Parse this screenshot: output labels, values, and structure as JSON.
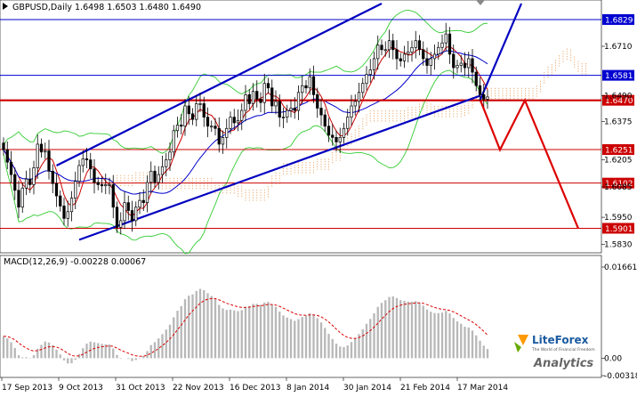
{
  "chart_data": {
    "type": "candlestick",
    "symbol_header": {
      "symbol": "GBPUSD,Daily",
      "ohlc": "1.6498 1.6503 1.6480 1.6490"
    },
    "price_axis": {
      "ticks": [
        "1.6710",
        "1.6490",
        "1.6375",
        "1.6205",
        "1.6085",
        "1.5950",
        "1.5830"
      ],
      "range": [
        1.58,
        1.69
      ]
    },
    "price_levels": [
      {
        "label": "1.6829",
        "value": 1.6829,
        "color": "#0000d0",
        "style": "thin"
      },
      {
        "label": "1.6581",
        "value": 1.6581,
        "color": "#0000d0",
        "style": "thin"
      },
      {
        "label": "1.6470",
        "value": 1.647,
        "color": "#cc0000",
        "style": "thick"
      },
      {
        "label": "1.6251",
        "value": 1.6251,
        "color": "#cc0000",
        "style": "thin"
      },
      {
        "label": "1.6102",
        "value": 1.6102,
        "color": "#cc0000",
        "style": "thin"
      },
      {
        "label": "1.5901",
        "value": 1.5901,
        "color": "#cc0000",
        "style": "thin"
      }
    ],
    "date_axis": [
      "17 Sep 2013",
      "9 Oct 2013",
      "31 Oct 2013",
      "22 Nov 2013",
      "16 Dec 2013",
      "8 Jan 2014",
      "30 Jan 2014",
      "21 Feb 2014",
      "17 Mar 2014"
    ],
    "candles_close": [
      1.625,
      1.6195,
      1.614,
      1.607,
      1.5995,
      1.608,
      1.612,
      1.6095,
      1.617,
      1.6275,
      1.624,
      1.6245,
      1.6155,
      1.61,
      1.6045,
      1.6,
      1.5945,
      1.5975,
      1.6035,
      1.611,
      1.618,
      1.621,
      1.6205,
      1.6165,
      1.6105,
      1.6095,
      1.609,
      1.6095,
      1.6095,
      1.5995,
      1.5905,
      1.5935,
      1.6015,
      1.598,
      1.5935,
      1.5995,
      1.6025,
      1.6015,
      1.6105,
      1.6155,
      1.6105,
      1.614,
      1.6175,
      1.6205,
      1.624,
      1.6335,
      1.636,
      1.6355,
      1.6445,
      1.641,
      1.6385,
      1.6455,
      1.6455,
      1.6395,
      1.6355,
      1.6355,
      1.6345,
      1.6275,
      1.6305,
      1.6345,
      1.6395,
      1.637,
      1.638,
      1.6425,
      1.6495,
      1.6455,
      1.651,
      1.6475,
      1.646,
      1.6545,
      1.6525,
      1.6445,
      1.6465,
      1.6395,
      1.6395,
      1.6425,
      1.6435,
      1.6425,
      1.6505,
      1.6535,
      1.6525,
      1.6575,
      1.6495,
      1.6435,
      1.6405,
      1.6355,
      1.6315,
      1.6305,
      1.6285,
      1.6305,
      1.6345,
      1.6395,
      1.6445,
      1.6465,
      1.6505,
      1.6545,
      1.6585,
      1.6605,
      1.6655,
      1.6715,
      1.6695,
      1.6695,
      1.6735,
      1.6695,
      1.6655,
      1.6645,
      1.6675,
      1.6685,
      1.6705,
      1.6735,
      1.6695,
      1.6655,
      1.6625,
      1.6655,
      1.6675,
      1.6705,
      1.6725,
      1.6765,
      1.6675,
      1.6615,
      1.6625,
      1.6635,
      1.6615,
      1.6655,
      1.6595,
      1.6535,
      1.6495,
      1.6475,
      1.6485
    ],
    "channel": [
      {
        "from": [
          1.585,
          20
        ],
        "to": [
          1.649,
          126
        ]
      },
      {
        "from": [
          1.618,
          14
        ],
        "to": [
          1.69,
          100
        ]
      }
    ],
    "forecast_path": [
      1.647,
      1.625,
      1.647,
      1.59
    ],
    "macd": {
      "label": "MACD(12,26,9) -0.00228 0.00067",
      "ticks": [
        "0.01661",
        "0.00",
        "-0.00318"
      ],
      "range": [
        -0.00318,
        0.01661
      ]
    }
  },
  "branding": {
    "logo_text": "LiteForex",
    "tagline": "The World of Financial Freedom",
    "analytics": "Analytics"
  },
  "colors": {
    "bull": "#000000",
    "bear": "#000000",
    "level_blue": "#0000d0",
    "level_red": "#cc0000",
    "ma_fast": "#cc0000",
    "ma_slow": "#0000cc",
    "bb": "#33cc33",
    "cloud": "#e8a060"
  }
}
